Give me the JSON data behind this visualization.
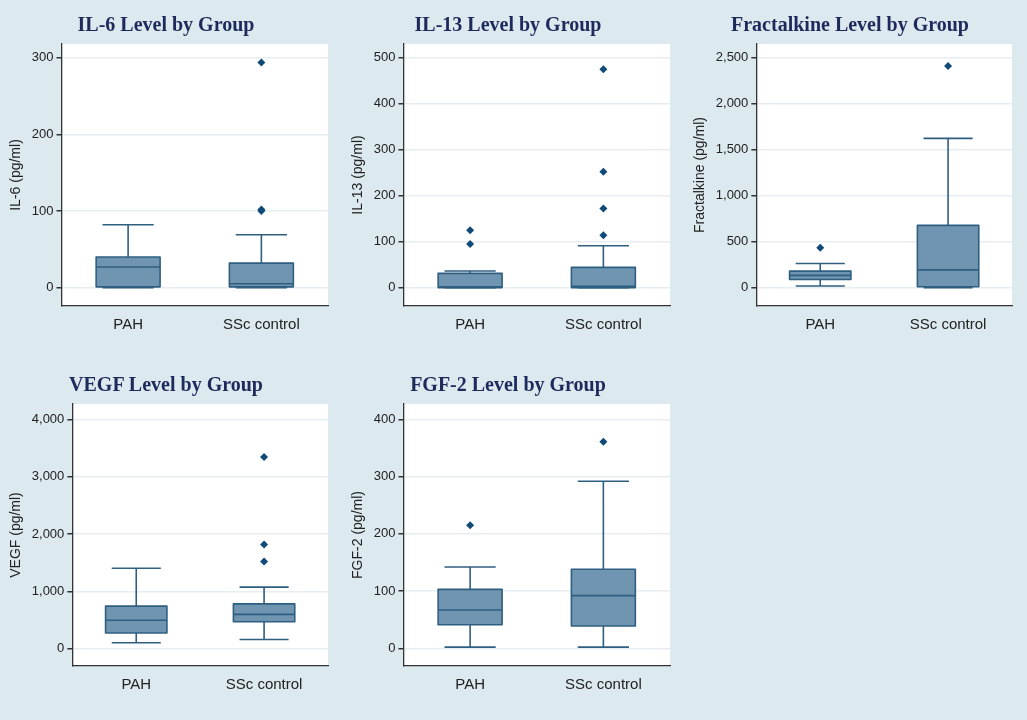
{
  "chart_data": [
    {
      "type": "box",
      "title": "IL-6 Level by Group",
      "ylabel": "IL-6 (pg/ml)",
      "categories": [
        "PAH",
        "SSc control"
      ],
      "ylim": [
        -24,
        318
      ],
      "yticks": [
        0,
        100,
        200,
        300
      ],
      "grid": "y",
      "marker": "diamond",
      "series": [
        {
          "color": "#6f95b0",
          "boxes": [
            {
              "low": 0,
              "q1": 1,
              "median": 27,
              "q3": 40,
              "high": 82
            },
            {
              "low": 0,
              "q1": 1,
              "median": 5,
              "q3": 32,
              "high": 69,
              "outliers": [
                100,
                102,
                294
              ]
            }
          ]
        }
      ]
    },
    {
      "type": "box",
      "title": "IL-13 Level by Group",
      "ylabel": "IL-13 (pg/ml)",
      "categories": [
        "PAH",
        "SSc control"
      ],
      "ylim": [
        -40,
        530
      ],
      "yticks": [
        0,
        100,
        200,
        300,
        400,
        500
      ],
      "grid": "y",
      "marker": "diamond",
      "series": [
        {
          "color": "#6f95b0",
          "boxes": [
            {
              "low": 0,
              "q1": 0,
              "median": 2,
              "q3": 31,
              "high": 36,
              "outliers": [
                95,
                125
              ]
            },
            {
              "low": 0,
              "q1": 0,
              "median": 3,
              "q3": 44,
              "high": 91,
              "outliers": [
                114,
                172,
                252,
                475
              ]
            }
          ]
        }
      ]
    },
    {
      "type": "box",
      "title": "Fractalkine Level by Group",
      "ylabel": "Fractalkine (pg/ml)",
      "categories": [
        "PAH",
        "SSc control"
      ],
      "ylim": [
        -200,
        2650
      ],
      "yticks": [
        0,
        500,
        {
          "value": 1000,
          "label": "1,000"
        },
        {
          "value": 1500,
          "label": "1,500"
        },
        {
          "value": 2000,
          "label": "2,000"
        },
        {
          "value": 2500,
          "label": "2,500"
        }
      ],
      "grid": "y",
      "marker": "diamond",
      "series": [
        {
          "color": "#6f95b0",
          "boxes": [
            {
              "low": 18,
              "q1": 88,
              "median": 133,
              "q3": 179,
              "high": 263,
              "outliers": [
                435
              ]
            },
            {
              "low": 0,
              "q1": 10,
              "median": 193,
              "q3": 677,
              "high": 1623,
              "outliers": [
                2412
              ]
            }
          ]
        }
      ]
    },
    {
      "type": "box",
      "title": "VEGF Level by Group",
      "ylabel": "VEGF (pg/ml)",
      "categories": [
        "PAH",
        "SSc control"
      ],
      "ylim": [
        -300,
        4270
      ],
      "yticks": [
        0,
        {
          "value": 1000,
          "label": "1,000"
        },
        {
          "value": 2000,
          "label": "2,000"
        },
        {
          "value": 3000,
          "label": "3,000"
        },
        {
          "value": 4000,
          "label": "4,000"
        }
      ],
      "grid": "y",
      "marker": "diamond",
      "series": [
        {
          "color": "#6f95b0",
          "boxes": [
            {
              "low": 106,
              "q1": 275,
              "median": 499,
              "q3": 745,
              "high": 1406
            },
            {
              "low": 162,
              "q1": 471,
              "median": 600,
              "q3": 784,
              "high": 1076,
              "outliers": [
                1524,
                1821,
                3345
              ]
            }
          ]
        }
      ]
    },
    {
      "type": "box",
      "title": "FGF-2 Level by Group",
      "ylabel": "FGF-2 (pg/ml)",
      "categories": [
        "PAH",
        "SSc control"
      ],
      "ylim": [
        -31,
        427
      ],
      "yticks": [
        0,
        100,
        200,
        300,
        400
      ],
      "grid": "y",
      "marker": "diamond",
      "series": [
        {
          "color": "#6f95b0",
          "boxes": [
            {
              "low": 2,
              "q1": 41,
              "median": 67,
              "q3": 103,
              "high": 142,
              "outliers": [
                215
              ]
            },
            {
              "low": 2,
              "q1": 39,
              "median": 92,
              "q3": 138,
              "high": 292,
              "outliers": [
                361
              ]
            }
          ]
        }
      ]
    }
  ]
}
